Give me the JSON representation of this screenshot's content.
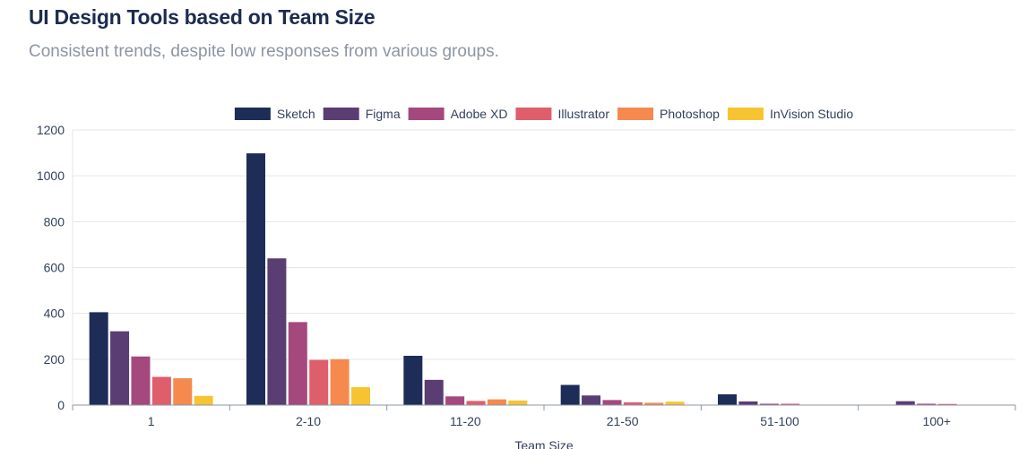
{
  "header": {
    "title": "UI Design Tools based on Team Size",
    "subtitle": "Consistent trends, despite low responses from various groups."
  },
  "chart_data": {
    "type": "bar",
    "title": "UI Design Tools based on Team Size",
    "subtitle": "Consistent trends, despite low responses from various groups.",
    "xlabel": "Team Size",
    "ylabel": "",
    "categories": [
      "1",
      "2-10",
      "11-20",
      "21-50",
      "51-100",
      "100+"
    ],
    "ylim": [
      0,
      1200
    ],
    "yticks": [
      0,
      200,
      400,
      600,
      800,
      1000,
      1200
    ],
    "grid": true,
    "legend_position": "top",
    "series": [
      {
        "name": "Sketch",
        "color": "#1e2d57",
        "values": [
          405,
          1098,
          215,
          88,
          47,
          0
        ]
      },
      {
        "name": "Figma",
        "color": "#5a3d72",
        "values": [
          322,
          640,
          110,
          42,
          16,
          17
        ]
      },
      {
        "name": "Adobe XD",
        "color": "#a4487d",
        "values": [
          212,
          362,
          38,
          22,
          6,
          6
        ]
      },
      {
        "name": "Illustrator",
        "color": "#df5e6b",
        "values": [
          123,
          197,
          18,
          12,
          6,
          5
        ]
      },
      {
        "name": "Photoshop",
        "color": "#f5894e",
        "values": [
          117,
          200,
          25,
          10,
          2,
          2
        ]
      },
      {
        "name": "InVision Studio",
        "color": "#f7c431",
        "values": [
          40,
          78,
          20,
          15,
          0,
          0
        ]
      }
    ]
  }
}
